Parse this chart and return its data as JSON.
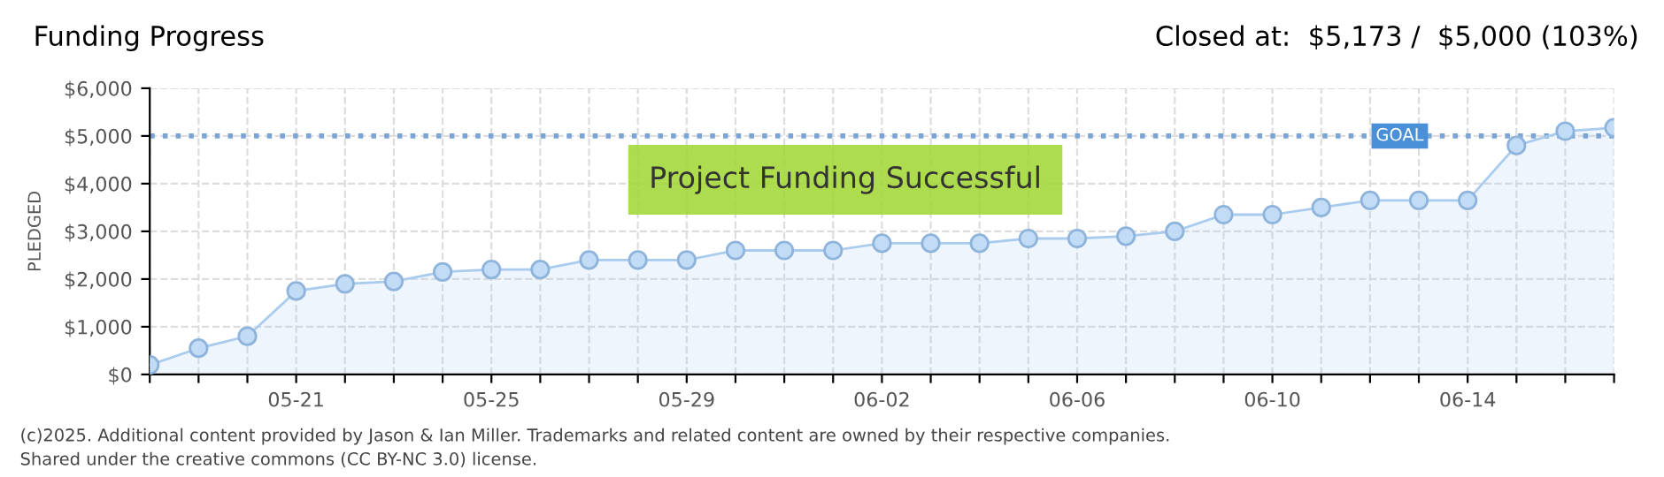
{
  "chart_data": {
    "type": "area",
    "title": "Funding Progress",
    "subtitle": "Closed at:  $5,173 /  $5,000 (103%)",
    "ylabel": "PLEDGED",
    "x": [
      "2025-05-18",
      "2025-05-19",
      "2025-05-20",
      "2025-05-21",
      "2025-05-22",
      "2025-05-23",
      "2025-05-24",
      "2025-05-25",
      "2025-05-26",
      "2025-05-27",
      "2025-05-28",
      "2025-05-29",
      "2025-05-30",
      "2025-05-31",
      "2025-06-01",
      "2025-06-02",
      "2025-06-03",
      "2025-06-04",
      "2025-06-05",
      "2025-06-06",
      "2025-06-07",
      "2025-06-08",
      "2025-06-09",
      "2025-06-10",
      "2025-06-11",
      "2025-06-12",
      "2025-06-13",
      "2025-06-14",
      "2025-06-15",
      "2025-06-16",
      "2025-06-17"
    ],
    "series": [
      {
        "color": "#a9cbee",
        "values": [
          200,
          550,
          800,
          1750,
          1900,
          1950,
          2150,
          2200,
          2200,
          2400,
          2400,
          2400,
          2600,
          2600,
          2600,
          2750,
          2750,
          2750,
          2850,
          2850,
          2900,
          3000,
          3350,
          3350,
          3500,
          3650,
          3650,
          3650,
          4800,
          5100,
          5173
        ]
      }
    ],
    "xlim": [
      "2025-05-18",
      "2025-06-17"
    ],
    "xticks": [
      {
        "value": "2025-05-18",
        "label": null
      },
      {
        "value": "2025-05-19",
        "label": null
      },
      {
        "value": "2025-05-20",
        "label": null
      },
      {
        "value": "2025-05-21",
        "label": "05-21"
      },
      {
        "value": "2025-05-22",
        "label": null
      },
      {
        "value": "2025-05-23",
        "label": null
      },
      {
        "value": "2025-05-24",
        "label": null
      },
      {
        "value": "2025-05-25",
        "label": "05-25"
      },
      {
        "value": "2025-05-26",
        "label": null
      },
      {
        "value": "2025-05-27",
        "label": null
      },
      {
        "value": "2025-05-28",
        "label": null
      },
      {
        "value": "2025-05-29",
        "label": "05-29"
      },
      {
        "value": "2025-05-30",
        "label": null
      },
      {
        "value": "2025-05-31",
        "label": null
      },
      {
        "value": "2025-06-01",
        "label": null
      },
      {
        "value": "2025-06-02",
        "label": "06-02"
      },
      {
        "value": "2025-06-03",
        "label": null
      },
      {
        "value": "2025-06-04",
        "label": null
      },
      {
        "value": "2025-06-05",
        "label": null
      },
      {
        "value": "2025-06-06",
        "label": "06-06"
      },
      {
        "value": "2025-06-07",
        "label": null
      },
      {
        "value": "2025-06-08",
        "label": null
      },
      {
        "value": "2025-06-09",
        "label": null
      },
      {
        "value": "2025-06-10",
        "label": "06-10"
      },
      {
        "value": "2025-06-11",
        "label": null
      },
      {
        "value": "2025-06-12",
        "label": null
      },
      {
        "value": "2025-06-13",
        "label": null
      },
      {
        "value": "2025-06-14",
        "label": "06-14"
      },
      {
        "value": "2025-06-15",
        "label": null
      },
      {
        "value": "2025-06-16",
        "label": null
      },
      {
        "value": "2025-06-17",
        "label": null
      }
    ],
    "ylim": [
      0,
      6000
    ],
    "yticks": [
      {
        "value": 0,
        "label": "$0"
      },
      {
        "value": 1000,
        "label": "$1,000"
      },
      {
        "value": 2000,
        "label": "$2,000"
      },
      {
        "value": 3000,
        "label": "$3,000"
      },
      {
        "value": 4000,
        "label": "$4,000"
      },
      {
        "value": 5000,
        "label": "$5,000"
      },
      {
        "value": 6000,
        "label": "$6,000"
      }
    ],
    "ref_lines": [
      {
        "axis": "y",
        "value": 5000,
        "label": "GOAL",
        "color": "#7ba4d6",
        "line_style": "dotted"
      }
    ],
    "annotations": [
      "Project Funding Successful",
      "(c)2025. Additional content provided by Jason & Ian Miller. Trademarks and related content are owned by their respective companies.",
      "Shared under the creative commons (CC BY-NC 3.0) license."
    ],
    "grid": true,
    "marker": "circle",
    "legend": false
  }
}
